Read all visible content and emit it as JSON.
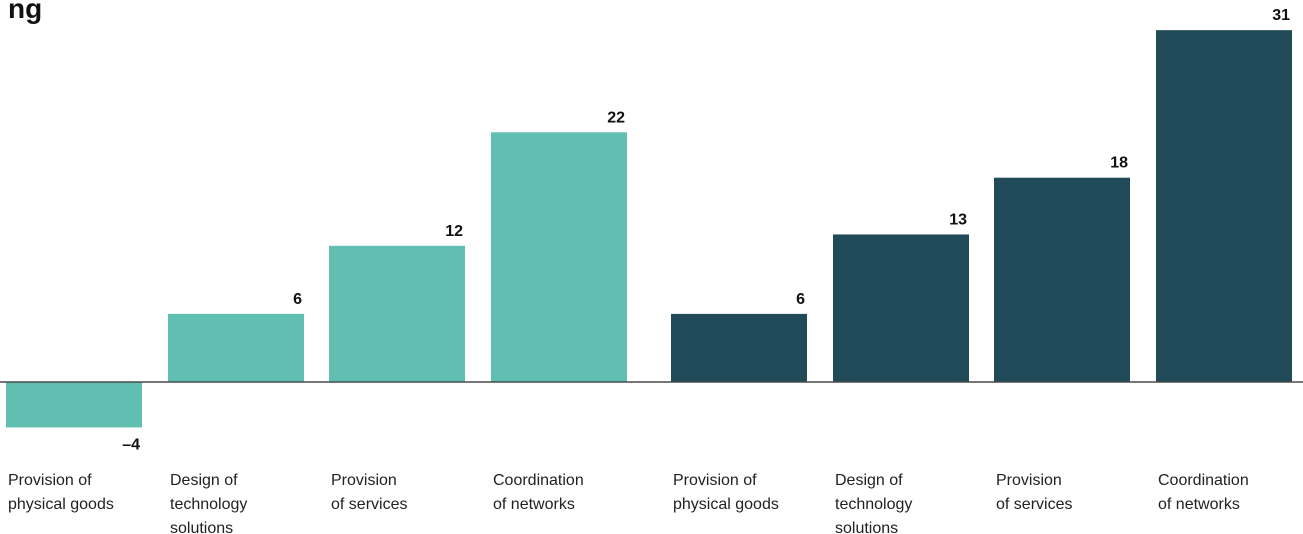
{
  "title_fragment": "ng",
  "chart_data": {
    "type": "bar",
    "categories": [
      "Provision of physical goods",
      "Design of technology solutions",
      "Provision of services",
      "Coordination of networks",
      "Provision of physical goods",
      "Design of technology solutions",
      "Provision of services",
      "Coordination of networks"
    ],
    "category_lines": [
      [
        "Provision of",
        "physical goods"
      ],
      [
        "Design of",
        "technology",
        "solutions"
      ],
      [
        "Provision",
        "of services"
      ],
      [
        "Coordination",
        "of networks"
      ],
      [
        "Provision of",
        "physical goods"
      ],
      [
        "Design of",
        "technology",
        "solutions"
      ],
      [
        "Provision",
        "of services"
      ],
      [
        "Coordination",
        "of networks"
      ]
    ],
    "values": [
      -4,
      6,
      12,
      22,
      6,
      13,
      18,
      31
    ],
    "value_labels": [
      "–4",
      "6",
      "12",
      "22",
      "6",
      "13",
      "18",
      "31"
    ],
    "groups": [
      {
        "indices": [
          0,
          1,
          2,
          3
        ],
        "color": "#61bfb1"
      },
      {
        "indices": [
          4,
          5,
          6,
          7
        ],
        "color": "#214a58"
      }
    ],
    "ylim": [
      -4,
      31
    ],
    "grid": false,
    "baseline_color": "#4a4a4a"
  }
}
